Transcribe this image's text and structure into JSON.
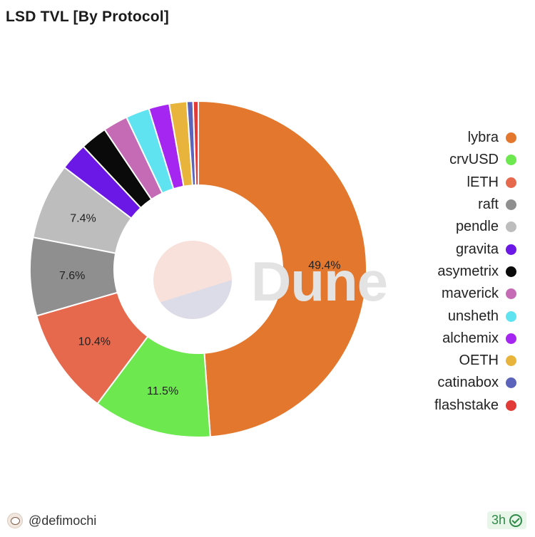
{
  "title": "LSD TVL [By Protocol]",
  "watermark": "Dune",
  "author": "@defimochi",
  "badge": "3h",
  "chart_data": {
    "type": "pie",
    "title": "LSD TVL [By Protocol]",
    "donut": true,
    "legend_position": "right",
    "slices": [
      {
        "name": "lybra",
        "value": 49.4,
        "label": "49.4%",
        "color": "#e3772d"
      },
      {
        "name": "crvUSD",
        "value": 11.5,
        "label": "11.5%",
        "color": "#6ee84f"
      },
      {
        "name": "lETH",
        "value": 10.4,
        "label": "10.4%",
        "color": "#e6694e"
      },
      {
        "name": "raft",
        "value": 7.6,
        "label": "7.6%",
        "color": "#8f8f8f"
      },
      {
        "name": "pendle",
        "value": 7.4,
        "label": "7.4%",
        "color": "#bdbdbd"
      },
      {
        "name": "gravita",
        "value": 2.7,
        "color": "#6b18e6"
      },
      {
        "name": "asymetrix",
        "value": 2.6,
        "color": "#0a0a0a"
      },
      {
        "name": "maverick",
        "value": 2.4,
        "color": "#c56bb6"
      },
      {
        "name": "unsheth",
        "value": 2.3,
        "color": "#5fe3f0"
      },
      {
        "name": "alchemix",
        "value": 2.0,
        "color": "#a526f0"
      },
      {
        "name": "OETH",
        "value": 1.7,
        "color": "#e8b43b"
      },
      {
        "name": "catinabox",
        "value": 0.6,
        "color": "#5b63ba"
      },
      {
        "name": "flashstake",
        "value": 0.5,
        "color": "#e23a36"
      }
    ]
  }
}
